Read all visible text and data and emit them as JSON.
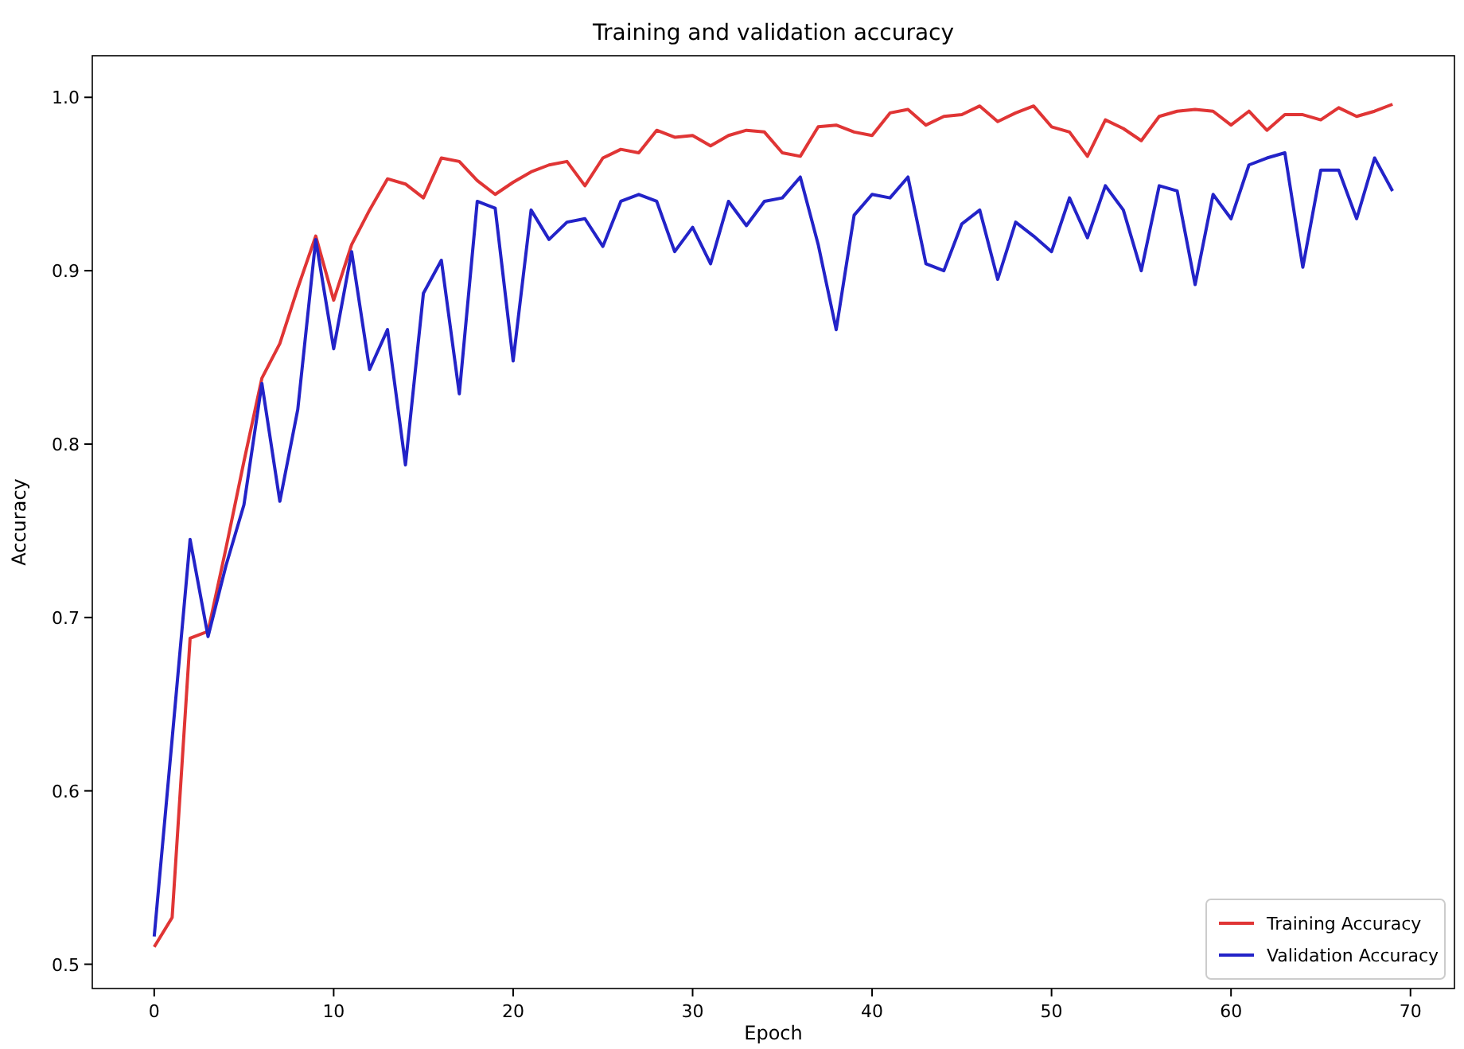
{
  "chart_data": {
    "type": "line",
    "title": "Training and validation accuracy",
    "xlabel": "Epoch",
    "ylabel": "Accuracy",
    "x": [
      0,
      1,
      2,
      3,
      4,
      5,
      6,
      7,
      8,
      9,
      10,
      11,
      12,
      13,
      14,
      15,
      16,
      17,
      18,
      19,
      20,
      21,
      22,
      23,
      24,
      25,
      26,
      27,
      28,
      29,
      30,
      31,
      32,
      33,
      34,
      35,
      36,
      37,
      38,
      39,
      40,
      41,
      42,
      43,
      44,
      45,
      46,
      47,
      48,
      49,
      50,
      51,
      52,
      53,
      54,
      55,
      56,
      57,
      58,
      59,
      60,
      61,
      62,
      63,
      64,
      65,
      66,
      67,
      68,
      69
    ],
    "series": [
      {
        "name": "Training Accuracy",
        "color": "#e03535",
        "values": [
          0.51,
          0.527,
          0.688,
          0.692,
          0.74,
          0.79,
          0.838,
          0.858,
          0.89,
          0.92,
          0.883,
          0.915,
          0.935,
          0.953,
          0.95,
          0.942,
          0.965,
          0.963,
          0.952,
          0.944,
          0.951,
          0.957,
          0.961,
          0.963,
          0.949,
          0.965,
          0.97,
          0.968,
          0.981,
          0.977,
          0.978,
          0.972,
          0.978,
          0.981,
          0.98,
          0.968,
          0.966,
          0.983,
          0.984,
          0.98,
          0.978,
          0.991,
          0.993,
          0.984,
          0.989,
          0.99,
          0.995,
          0.986,
          0.991,
          0.995,
          0.983,
          0.98,
          0.966,
          0.987,
          0.982,
          0.975,
          0.989,
          0.992,
          0.993,
          0.992,
          0.984,
          0.992,
          0.981,
          0.99,
          0.99,
          0.987,
          0.994,
          0.989,
          0.992,
          0.996
        ]
      },
      {
        "name": "Validation Accuracy",
        "color": "#2323c8",
        "values": [
          0.516,
          0.63,
          0.745,
          0.689,
          0.73,
          0.765,
          0.835,
          0.767,
          0.82,
          0.918,
          0.855,
          0.911,
          0.843,
          0.866,
          0.788,
          0.887,
          0.906,
          0.829,
          0.94,
          0.936,
          0.848,
          0.935,
          0.918,
          0.928,
          0.93,
          0.914,
          0.94,
          0.944,
          0.94,
          0.911,
          0.925,
          0.904,
          0.94,
          0.926,
          0.94,
          0.942,
          0.954,
          0.915,
          0.866,
          0.932,
          0.944,
          0.942,
          0.954,
          0.904,
          0.9,
          0.927,
          0.935,
          0.895,
          0.928,
          0.92,
          0.911,
          0.942,
          0.919,
          0.949,
          0.935,
          0.9,
          0.949,
          0.946,
          0.892,
          0.944,
          0.93,
          0.961,
          0.965,
          0.968,
          0.902,
          0.958,
          0.958,
          0.93,
          0.965,
          0.946
        ]
      }
    ],
    "xlim": [
      -3.45,
      72.45
    ],
    "ylim": [
      0.486,
      1.024
    ],
    "xticks": [
      0,
      10,
      20,
      30,
      40,
      50,
      60,
      70
    ],
    "yticks": [
      {
        "value": 0.5,
        "label": "0.5"
      },
      {
        "value": 0.6,
        "label": "0.6"
      },
      {
        "value": 0.7,
        "label": "0.7"
      },
      {
        "value": 0.8,
        "label": "0.8"
      },
      {
        "value": 0.9,
        "label": "0.9"
      },
      {
        "value": 1,
        "label": "1.0"
      }
    ],
    "grid": false,
    "legend": "bottom right",
    "marker": "none",
    "line_style": "solid"
  }
}
